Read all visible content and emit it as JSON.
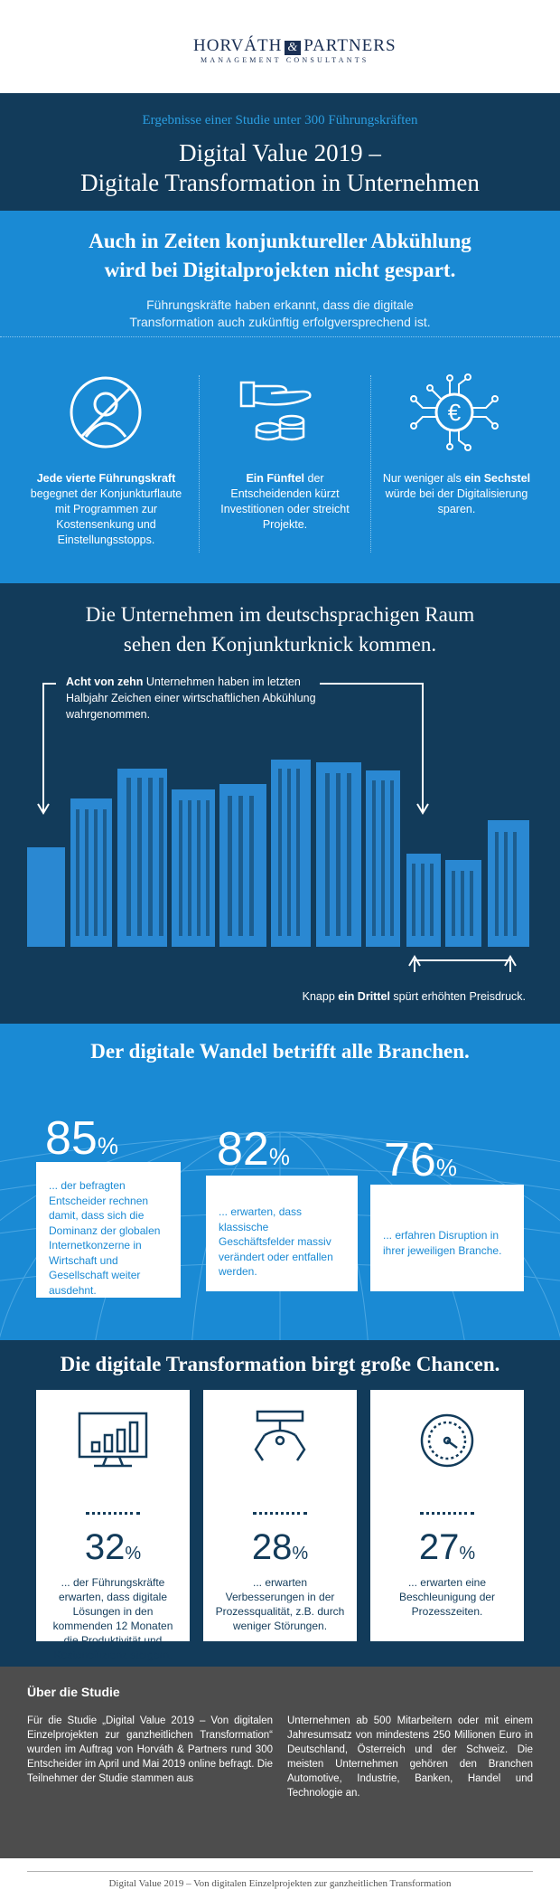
{
  "logo": {
    "left": "HORVÁTH",
    "amp": "&",
    "right": "PARTNERS",
    "sub": "MANAGEMENT CONSULTANTS"
  },
  "hero": {
    "kicker": "Ergebnisse einer Studie unter 300 Führungskräften",
    "title_line1": "Digital Value 2019 –",
    "title_line2": "Digitale Transformation in Unternehmen"
  },
  "section1": {
    "heading_line1": "Auch in Zeiten konjunktureller Abkühlung",
    "heading_line2": "wird bei Digitalprojekten nicht gespart.",
    "lead_line1": "Führungskräfte haben erkannt, dass die digitale",
    "lead_line2": "Transformation auch zukünftig erfolgversprechend ist.",
    "items": [
      {
        "icon": "no-person-icon",
        "bold": "Jede vierte Führungskraft",
        "text": " begegnet der Konjunkturflaute mit Programmen zur Kostensenkung und Einstellungsstopps."
      },
      {
        "icon": "hand-coins-icon",
        "bold": "Ein Fünftel",
        "text": " der Entscheidenden kürzt Investitionen oder streicht Projekte."
      },
      {
        "icon": "euro-circuit-icon",
        "pre": "Nur weniger als ",
        "bold": "ein Sechstel",
        "text": " würde bei der Digitalisierung sparen."
      }
    ]
  },
  "section2": {
    "heading_line1": "Die Unternehmen im deutschsprachigen Raum",
    "heading_line2": "sehen den Konjunkturknick kommen.",
    "note_bold": "Acht von zehn",
    "note_text": " Unternehmen haben im letzten Halbjahr Zeichen einer wirtschaftlichen Abkühlung wahrgenommen.",
    "note2_pre": "Knapp ",
    "note2_bold": "ein Drittel",
    "note2_text": " spürt erhöhten Preisdruck."
  },
  "section3": {
    "heading": "Der digitale Wandel betrifft alle Branchen.",
    "stats": [
      {
        "value": "85",
        "unit": "%",
        "text": "... der befragten Entscheider rechnen damit, dass sich die Dominanz der globalen Internetkonzerne in Wirtschaft und Gesellschaft weiter ausdehnt."
      },
      {
        "value": "82",
        "unit": "%",
        "text": "... erwarten, dass klassische Geschäftsfelder massiv verändert oder entfallen werden."
      },
      {
        "value": "76",
        "unit": "%",
        "text": "... erfahren Disruption in ihrer jeweiligen Branche."
      }
    ]
  },
  "section4": {
    "heading": "Die digitale Transformation birgt große Chancen.",
    "stats": [
      {
        "icon": "monitor-chart-icon",
        "value": "32",
        "unit": "%",
        "text": "... der Führungskräfte erwarten, dass digitale Lösungen in den kommenden 12 Monaten die Produktivität und Kosteneffizienz steigern."
      },
      {
        "icon": "robot-gripper-icon",
        "value": "28",
        "unit": "%",
        "text": "... erwarten Verbesserungen in der Prozessqualität, z.B. durch weniger Störungen."
      },
      {
        "icon": "speedometer-icon",
        "value": "27",
        "unit": "%",
        "text": "... erwarten eine Beschleunigung der Prozesszeiten."
      }
    ]
  },
  "about": {
    "heading": "Über die Studie",
    "col1": "Für die Studie „Digital Value 2019 – Von digitalen Einzelprojekten zur ganzheitlichen Transformation“ wurden im Auftrag von Horváth & Partners rund 300 Entscheider im April und Mai 2019 online befragt. Die Teilnehmer der Studie stammen aus",
    "col2": "Unternehmen ab 500 Mitarbeitern oder mit einem Jahresumsatz von mindestens 250 Millionen Euro in Deutschland, Österreich und der Schweiz. Die meisten Unternehmen gehören den Branchen Automotive, Industrie, Banken, Handel und Technologie an."
  },
  "footer": {
    "text": "Digital Value 2019 – Von digitalen Einzelprojekten zur ganzheitlichen Transformation"
  },
  "colors": {
    "navy": "#123b5a",
    "blue": "#1a8ad4",
    "light_blue": "#2a9de0",
    "grey": "#4d4d4d"
  }
}
